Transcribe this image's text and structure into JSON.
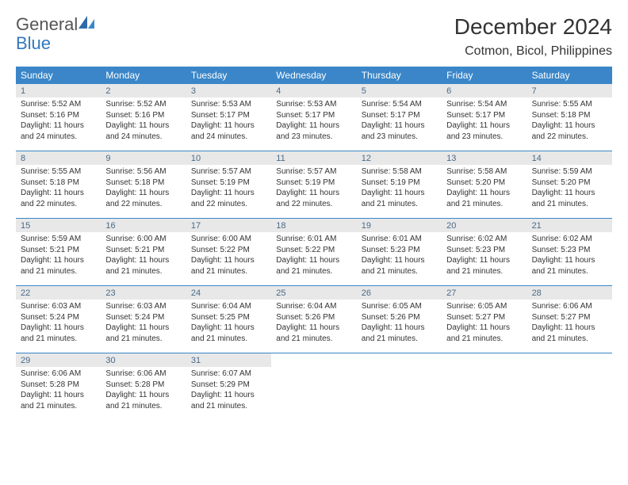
{
  "logo": {
    "text1": "General",
    "text2": "Blue"
  },
  "title": "December 2024",
  "location": "Cotmon, Bicol, Philippines",
  "colors": {
    "header_bg": "#3a86c8",
    "header_fg": "#ffffff",
    "daynum_bg": "#e8e8e8",
    "daynum_fg": "#4a6a88",
    "rule": "#3a86c8",
    "logo_blue": "#3478bd"
  },
  "dow": [
    "Sunday",
    "Monday",
    "Tuesday",
    "Wednesday",
    "Thursday",
    "Friday",
    "Saturday"
  ],
  "weeks": [
    [
      {
        "n": "1",
        "sr": "Sunrise: 5:52 AM",
        "ss": "Sunset: 5:16 PM",
        "dl": "Daylight: 11 hours and 24 minutes."
      },
      {
        "n": "2",
        "sr": "Sunrise: 5:52 AM",
        "ss": "Sunset: 5:16 PM",
        "dl": "Daylight: 11 hours and 24 minutes."
      },
      {
        "n": "3",
        "sr": "Sunrise: 5:53 AM",
        "ss": "Sunset: 5:17 PM",
        "dl": "Daylight: 11 hours and 24 minutes."
      },
      {
        "n": "4",
        "sr": "Sunrise: 5:53 AM",
        "ss": "Sunset: 5:17 PM",
        "dl": "Daylight: 11 hours and 23 minutes."
      },
      {
        "n": "5",
        "sr": "Sunrise: 5:54 AM",
        "ss": "Sunset: 5:17 PM",
        "dl": "Daylight: 11 hours and 23 minutes."
      },
      {
        "n": "6",
        "sr": "Sunrise: 5:54 AM",
        "ss": "Sunset: 5:17 PM",
        "dl": "Daylight: 11 hours and 23 minutes."
      },
      {
        "n": "7",
        "sr": "Sunrise: 5:55 AM",
        "ss": "Sunset: 5:18 PM",
        "dl": "Daylight: 11 hours and 22 minutes."
      }
    ],
    [
      {
        "n": "8",
        "sr": "Sunrise: 5:55 AM",
        "ss": "Sunset: 5:18 PM",
        "dl": "Daylight: 11 hours and 22 minutes."
      },
      {
        "n": "9",
        "sr": "Sunrise: 5:56 AM",
        "ss": "Sunset: 5:18 PM",
        "dl": "Daylight: 11 hours and 22 minutes."
      },
      {
        "n": "10",
        "sr": "Sunrise: 5:57 AM",
        "ss": "Sunset: 5:19 PM",
        "dl": "Daylight: 11 hours and 22 minutes."
      },
      {
        "n": "11",
        "sr": "Sunrise: 5:57 AM",
        "ss": "Sunset: 5:19 PM",
        "dl": "Daylight: 11 hours and 22 minutes."
      },
      {
        "n": "12",
        "sr": "Sunrise: 5:58 AM",
        "ss": "Sunset: 5:19 PM",
        "dl": "Daylight: 11 hours and 21 minutes."
      },
      {
        "n": "13",
        "sr": "Sunrise: 5:58 AM",
        "ss": "Sunset: 5:20 PM",
        "dl": "Daylight: 11 hours and 21 minutes."
      },
      {
        "n": "14",
        "sr": "Sunrise: 5:59 AM",
        "ss": "Sunset: 5:20 PM",
        "dl": "Daylight: 11 hours and 21 minutes."
      }
    ],
    [
      {
        "n": "15",
        "sr": "Sunrise: 5:59 AM",
        "ss": "Sunset: 5:21 PM",
        "dl": "Daylight: 11 hours and 21 minutes."
      },
      {
        "n": "16",
        "sr": "Sunrise: 6:00 AM",
        "ss": "Sunset: 5:21 PM",
        "dl": "Daylight: 11 hours and 21 minutes."
      },
      {
        "n": "17",
        "sr": "Sunrise: 6:00 AM",
        "ss": "Sunset: 5:22 PM",
        "dl": "Daylight: 11 hours and 21 minutes."
      },
      {
        "n": "18",
        "sr": "Sunrise: 6:01 AM",
        "ss": "Sunset: 5:22 PM",
        "dl": "Daylight: 11 hours and 21 minutes."
      },
      {
        "n": "19",
        "sr": "Sunrise: 6:01 AM",
        "ss": "Sunset: 5:23 PM",
        "dl": "Daylight: 11 hours and 21 minutes."
      },
      {
        "n": "20",
        "sr": "Sunrise: 6:02 AM",
        "ss": "Sunset: 5:23 PM",
        "dl": "Daylight: 11 hours and 21 minutes."
      },
      {
        "n": "21",
        "sr": "Sunrise: 6:02 AM",
        "ss": "Sunset: 5:23 PM",
        "dl": "Daylight: 11 hours and 21 minutes."
      }
    ],
    [
      {
        "n": "22",
        "sr": "Sunrise: 6:03 AM",
        "ss": "Sunset: 5:24 PM",
        "dl": "Daylight: 11 hours and 21 minutes."
      },
      {
        "n": "23",
        "sr": "Sunrise: 6:03 AM",
        "ss": "Sunset: 5:24 PM",
        "dl": "Daylight: 11 hours and 21 minutes."
      },
      {
        "n": "24",
        "sr": "Sunrise: 6:04 AM",
        "ss": "Sunset: 5:25 PM",
        "dl": "Daylight: 11 hours and 21 minutes."
      },
      {
        "n": "25",
        "sr": "Sunrise: 6:04 AM",
        "ss": "Sunset: 5:26 PM",
        "dl": "Daylight: 11 hours and 21 minutes."
      },
      {
        "n": "26",
        "sr": "Sunrise: 6:05 AM",
        "ss": "Sunset: 5:26 PM",
        "dl": "Daylight: 11 hours and 21 minutes."
      },
      {
        "n": "27",
        "sr": "Sunrise: 6:05 AM",
        "ss": "Sunset: 5:27 PM",
        "dl": "Daylight: 11 hours and 21 minutes."
      },
      {
        "n": "28",
        "sr": "Sunrise: 6:06 AM",
        "ss": "Sunset: 5:27 PM",
        "dl": "Daylight: 11 hours and 21 minutes."
      }
    ],
    [
      {
        "n": "29",
        "sr": "Sunrise: 6:06 AM",
        "ss": "Sunset: 5:28 PM",
        "dl": "Daylight: 11 hours and 21 minutes."
      },
      {
        "n": "30",
        "sr": "Sunrise: 6:06 AM",
        "ss": "Sunset: 5:28 PM",
        "dl": "Daylight: 11 hours and 21 minutes."
      },
      {
        "n": "31",
        "sr": "Sunrise: 6:07 AM",
        "ss": "Sunset: 5:29 PM",
        "dl": "Daylight: 11 hours and 21 minutes."
      },
      null,
      null,
      null,
      null
    ]
  ]
}
